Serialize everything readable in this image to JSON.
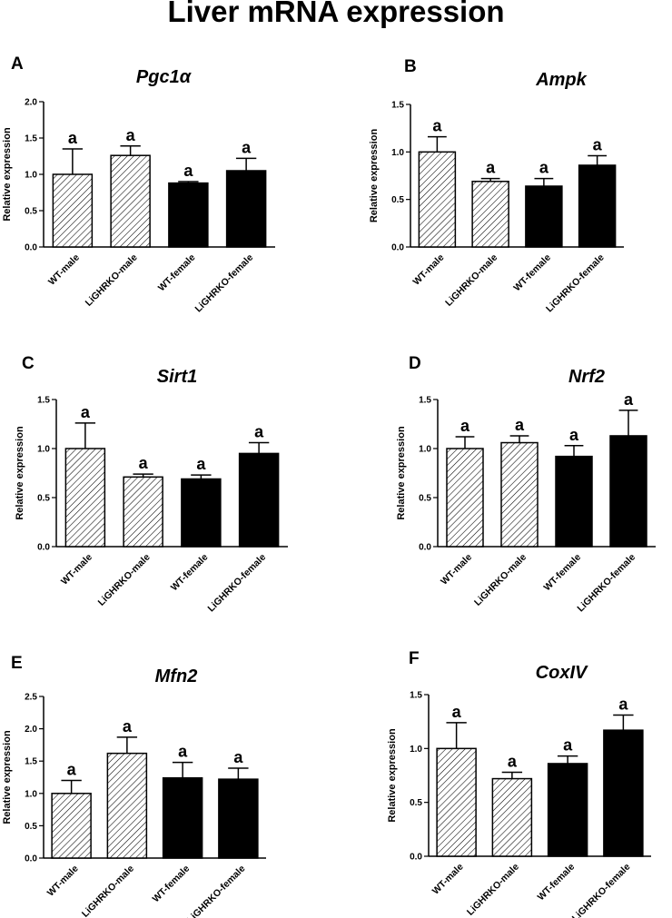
{
  "figure": {
    "title": "Liver mRNA expression"
  },
  "colors": {
    "male_fill": "#ffffff",
    "female_fill": "#000000",
    "stroke": "#000000",
    "hatch": "#000000"
  },
  "chart_data": [
    {
      "panel": "A",
      "title": "Pgc1α",
      "type": "bar",
      "categories": [
        "WT-male",
        "LiGHRKO-male",
        "WT-female",
        "LiGHRKO-female"
      ],
      "values": [
        1.0,
        1.26,
        0.88,
        1.05
      ],
      "errors": [
        0.35,
        0.13,
        0.02,
        0.17
      ],
      "significance": [
        "a",
        "a",
        "a",
        "a"
      ],
      "fills": [
        "hatched",
        "hatched",
        "solid",
        "solid"
      ],
      "ylabel": "Relative expression",
      "ylim": [
        0,
        2.0
      ],
      "yticks": [
        0.0,
        0.5,
        1.0,
        1.5,
        2.0
      ],
      "ytick_labels": [
        "0.0",
        "0.5",
        "1.0",
        "1.5",
        "2.0"
      ]
    },
    {
      "panel": "B",
      "title": "Ampk",
      "type": "bar",
      "categories": [
        "WT-male",
        "LiGHRKO-male",
        "WT-female",
        "LiGHRKO-female"
      ],
      "values": [
        1.0,
        0.69,
        0.64,
        0.86
      ],
      "errors": [
        0.16,
        0.03,
        0.08,
        0.1
      ],
      "significance": [
        "a",
        "a",
        "a",
        "a"
      ],
      "fills": [
        "hatched",
        "hatched",
        "solid",
        "solid"
      ],
      "ylabel": "Relative expression",
      "ylim": [
        0,
        1.5
      ],
      "yticks": [
        0.0,
        0.5,
        1.0,
        1.5
      ],
      "ytick_labels": [
        "0.0",
        "0.5",
        "1.0",
        "1.5"
      ]
    },
    {
      "panel": "C",
      "title": "Sirt1",
      "type": "bar",
      "categories": [
        "WT-male",
        "LiGHRKO-male",
        "WT-female",
        "LiGHRKO-female"
      ],
      "values": [
        1.0,
        0.71,
        0.69,
        0.95
      ],
      "errors": [
        0.26,
        0.03,
        0.04,
        0.11
      ],
      "significance": [
        "a",
        "a",
        "a",
        "a"
      ],
      "fills": [
        "hatched",
        "hatched",
        "solid",
        "solid"
      ],
      "ylabel": "Relative expression",
      "ylim": [
        0,
        1.5
      ],
      "yticks": [
        0.0,
        0.5,
        1.0,
        1.5
      ],
      "ytick_labels": [
        "0.0",
        "0.5",
        "1.0",
        "1.5"
      ]
    },
    {
      "panel": "D",
      "title": "Nrf2",
      "type": "bar",
      "categories": [
        "WT-male",
        "LiGHRKO-male",
        "WT-female",
        "LiGHRKO-female"
      ],
      "values": [
        1.0,
        1.06,
        0.92,
        1.13
      ],
      "errors": [
        0.12,
        0.07,
        0.11,
        0.26
      ],
      "significance": [
        "a",
        "a",
        "a",
        "a"
      ],
      "fills": [
        "hatched",
        "hatched",
        "solid",
        "solid"
      ],
      "ylabel": "Relative expression",
      "ylim": [
        0,
        1.5
      ],
      "yticks": [
        0.0,
        0.5,
        1.0,
        1.5
      ],
      "ytick_labels": [
        "0.0",
        "0.5",
        "1.0",
        "1.5"
      ]
    },
    {
      "panel": "E",
      "title": "Mfn2",
      "type": "bar",
      "categories": [
        "WT-male",
        "LiGHRKO-male",
        "WT-female",
        "LiGHRKO-female"
      ],
      "values": [
        1.0,
        1.62,
        1.24,
        1.22
      ],
      "errors": [
        0.2,
        0.25,
        0.24,
        0.17
      ],
      "significance": [
        "a",
        "a",
        "a",
        "a"
      ],
      "fills": [
        "hatched",
        "hatched",
        "solid",
        "solid"
      ],
      "ylabel": "Relative expression",
      "ylim": [
        0,
        2.5
      ],
      "yticks": [
        0.0,
        0.5,
        1.0,
        1.5,
        2.0,
        2.5
      ],
      "ytick_labels": [
        "0.0",
        "0.5",
        "1.0",
        "1.5",
        "2.0",
        "2.5"
      ]
    },
    {
      "panel": "F",
      "title": "CoxIV",
      "type": "bar",
      "categories": [
        "WT-male",
        "LiGHRKO-male",
        "WT-female",
        "LiGHRKO-female"
      ],
      "values": [
        1.0,
        0.72,
        0.86,
        1.17
      ],
      "errors": [
        0.24,
        0.06,
        0.07,
        0.14
      ],
      "significance": [
        "a",
        "a",
        "a",
        "a"
      ],
      "fills": [
        "hatched",
        "hatched",
        "solid",
        "solid"
      ],
      "ylabel": "Relative expression",
      "ylim": [
        0,
        1.5
      ],
      "yticks": [
        0.0,
        0.5,
        1.0,
        1.5
      ],
      "ytick_labels": [
        "0.0",
        "0.5",
        "1.0",
        "1.5"
      ]
    }
  ]
}
